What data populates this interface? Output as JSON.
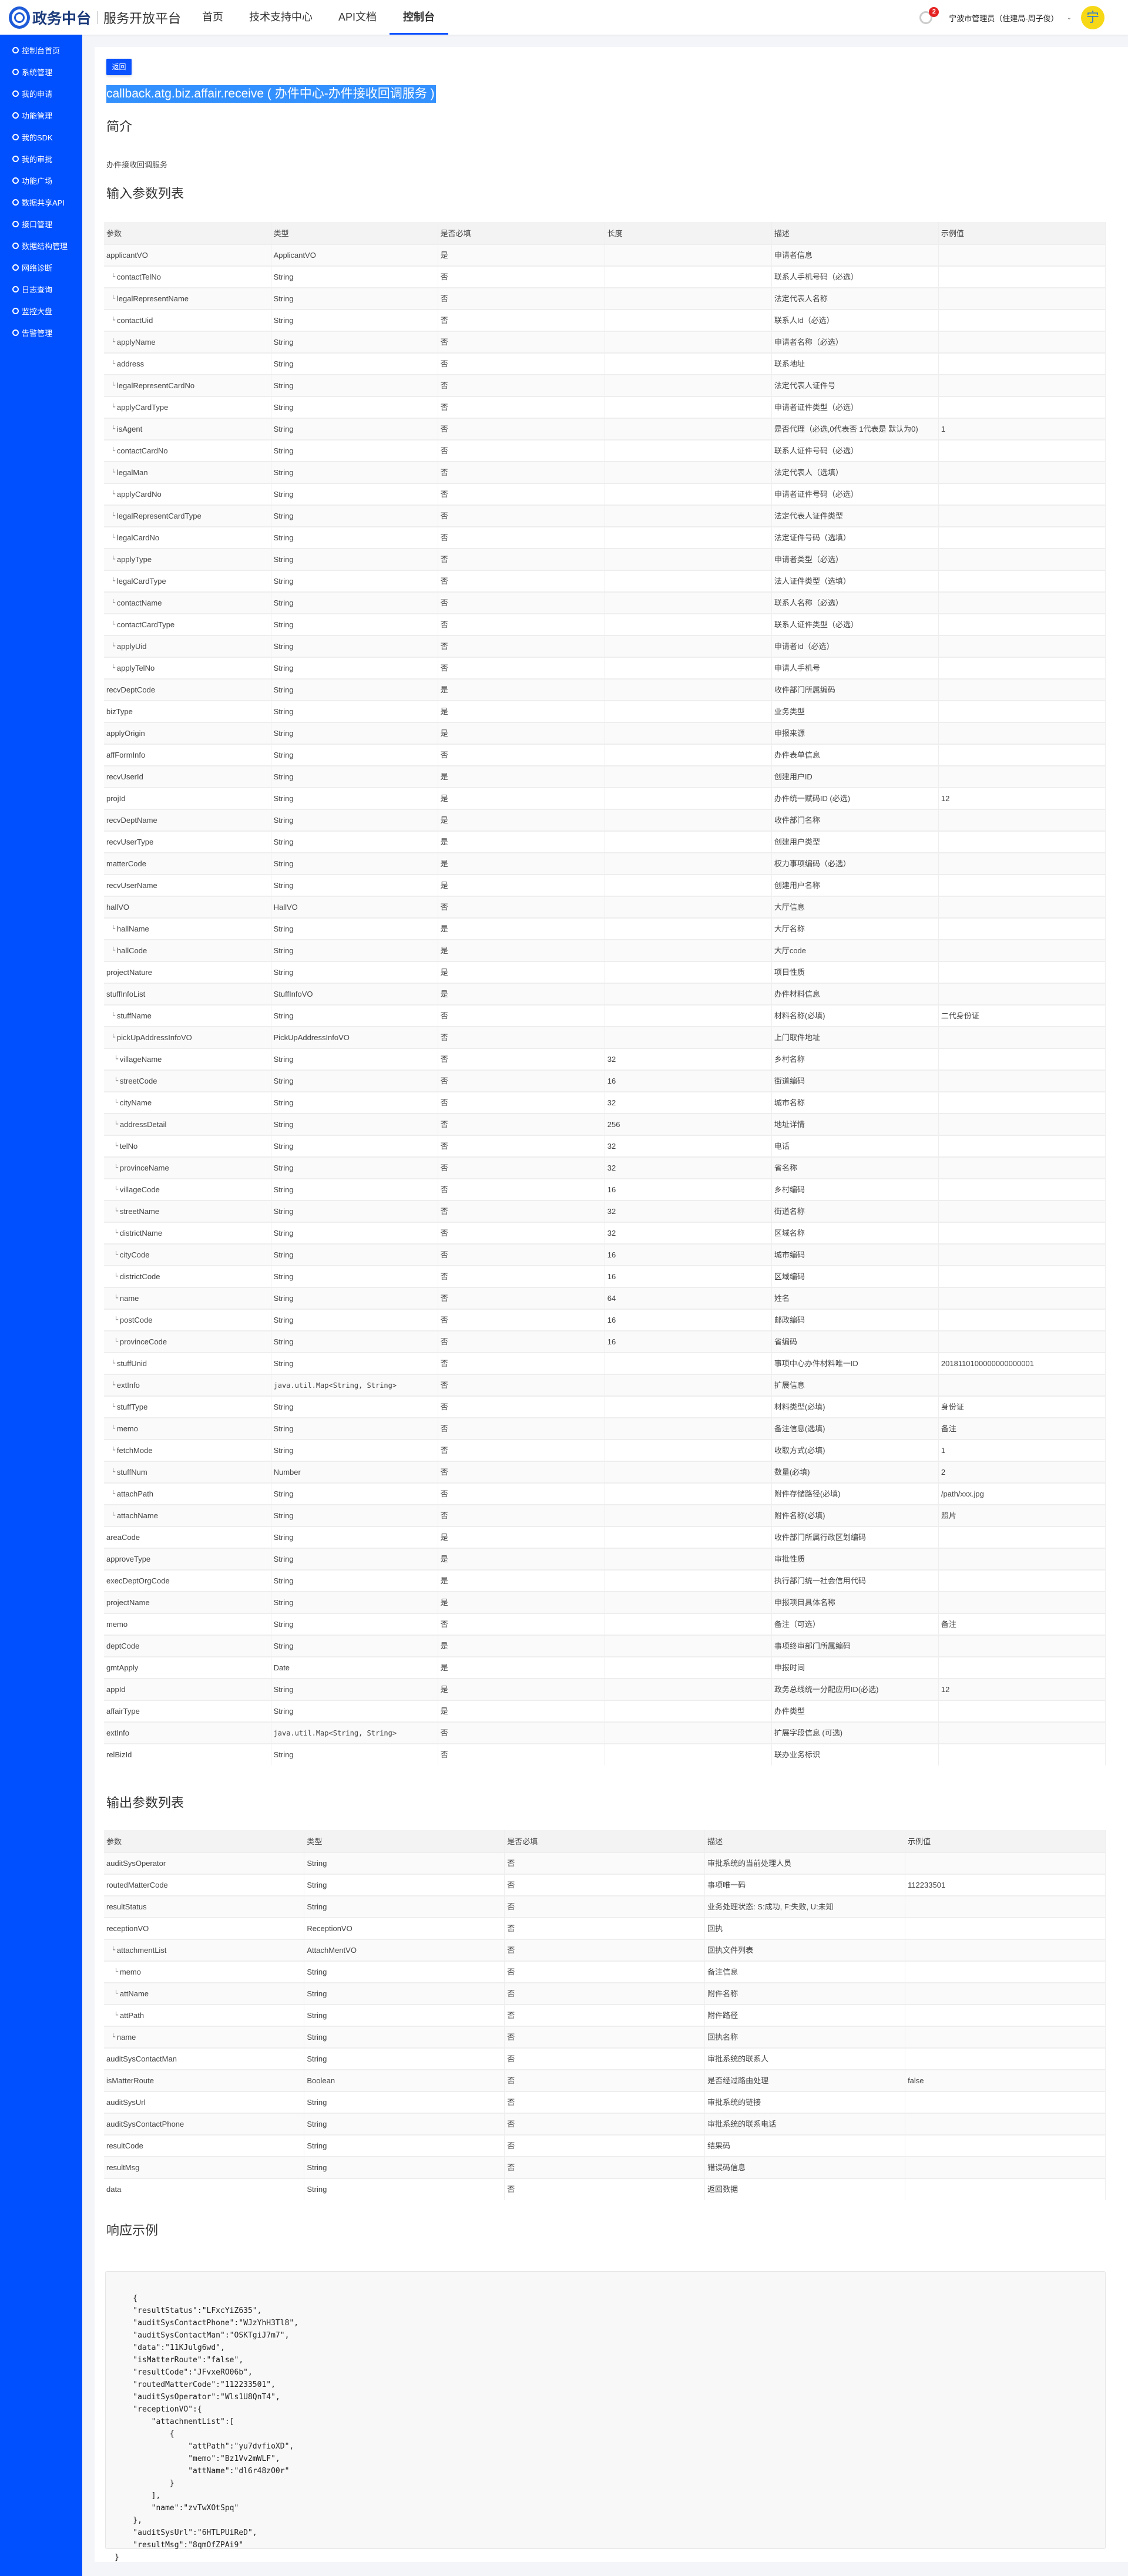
{
  "header": {
    "logo": "政务中台",
    "subtitle": "服务开放平台",
    "nav": [
      "首页",
      "技术支持中心",
      "API文档",
      "控制台"
    ],
    "active_nav": "控制台",
    "notification_count": "2",
    "user": "宁波市管理员（住建局-周子俊）",
    "avatar": "宁"
  },
  "sidebar": {
    "items": [
      {
        "label": "控制台首页",
        "icon": "smile-icon"
      },
      {
        "label": "系统管理",
        "icon": "gear-icon"
      },
      {
        "label": "我的申请",
        "icon": "pen-icon"
      },
      {
        "label": "功能管理",
        "icon": "copy-icon"
      },
      {
        "label": "我的SDK",
        "icon": "download-icon"
      },
      {
        "label": "我的审批",
        "icon": "wallet-icon"
      },
      {
        "label": "功能广场",
        "icon": "search-icon"
      },
      {
        "label": "数据共享API",
        "icon": "link-icon"
      },
      {
        "label": "接口管理",
        "icon": "user-icon"
      },
      {
        "label": "数据结构管理",
        "icon": "pie-chart-icon"
      },
      {
        "label": "网络诊断",
        "icon": "link-icon"
      },
      {
        "label": "日志查询",
        "icon": "clock-icon"
      },
      {
        "label": "监控大盘",
        "icon": "bar-chart-icon"
      },
      {
        "label": "告警管理",
        "icon": "smile-icon"
      }
    ]
  },
  "main": {
    "back_label": "返回",
    "api_title": "callback.atg.biz.affair.receive ( 办件中心-办件接收回调服务 )",
    "intro_heading": "简介",
    "intro_text": "办件接收回调服务",
    "input_heading": "输入参数列表",
    "input_columns": [
      "参数",
      "类型",
      "是否必填",
      "长度",
      "描述",
      "示例值"
    ],
    "input_rows": [
      [
        "applicantVO",
        "ApplicantVO",
        "是",
        "",
        "申请者信息",
        "",
        0
      ],
      [
        "contactTelNo",
        "String",
        "否",
        "",
        "联系人手机号码（必选）",
        "",
        1
      ],
      [
        "legalRepresentName",
        "String",
        "否",
        "",
        "法定代表人名称",
        "",
        1
      ],
      [
        "contactUid",
        "String",
        "否",
        "",
        "联系人Id（必选）",
        "",
        1
      ],
      [
        "applyName",
        "String",
        "否",
        "",
        "申请者名称（必选）",
        "",
        1
      ],
      [
        "address",
        "String",
        "否",
        "",
        "联系地址",
        "",
        1
      ],
      [
        "legalRepresentCardNo",
        "String",
        "否",
        "",
        "法定代表人证件号",
        "",
        1
      ],
      [
        "applyCardType",
        "String",
        "否",
        "",
        "申请者证件类型（必选）",
        "",
        1
      ],
      [
        "isAgent",
        "String",
        "否",
        "",
        "是否代理（必选,0代表否 1代表是 默认为0)",
        "1",
        1
      ],
      [
        "contactCardNo",
        "String",
        "否",
        "",
        "联系人证件号码（必选）",
        "",
        1
      ],
      [
        "legalMan",
        "String",
        "否",
        "",
        "法定代表人（选填）",
        "",
        1
      ],
      [
        "applyCardNo",
        "String",
        "否",
        "",
        "申请者证件号码（必选）",
        "",
        1
      ],
      [
        "legalRepresentCardType",
        "String",
        "否",
        "",
        "法定代表人证件类型",
        "",
        1
      ],
      [
        "legalCardNo",
        "String",
        "否",
        "",
        "法定证件号码（选填）",
        "",
        1
      ],
      [
        "applyType",
        "String",
        "否",
        "",
        "申请者类型（必选）",
        "",
        1
      ],
      [
        "legalCardType",
        "String",
        "否",
        "",
        "法人证件类型（选填）",
        "",
        1
      ],
      [
        "contactName",
        "String",
        "否",
        "",
        "联系人名称（必选）",
        "",
        1
      ],
      [
        "contactCardType",
        "String",
        "否",
        "",
        "联系人证件类型（必选）",
        "",
        1
      ],
      [
        "applyUid",
        "String",
        "否",
        "",
        "申请者Id（必选）",
        "",
        1
      ],
      [
        "applyTelNo",
        "String",
        "否",
        "",
        "申请人手机号",
        "",
        1
      ],
      [
        "recvDeptCode",
        "String",
        "是",
        "",
        "收件部门所属编码",
        "",
        0
      ],
      [
        "bizType",
        "String",
        "是",
        "",
        "业务类型",
        "",
        0
      ],
      [
        "applyOrigin",
        "String",
        "是",
        "",
        "申报来源",
        "",
        0
      ],
      [
        "affFormInfo",
        "String",
        "否",
        "",
        "办件表单信息",
        "",
        0
      ],
      [
        "recvUserId",
        "String",
        "是",
        "",
        "创建用户ID",
        "",
        0
      ],
      [
        "projId",
        "String",
        "是",
        "",
        "办件统一赋码ID (必选)",
        "12",
        0
      ],
      [
        "recvDeptName",
        "String",
        "是",
        "",
        "收件部门名称",
        "",
        0
      ],
      [
        "recvUserType",
        "String",
        "是",
        "",
        "创建用户类型",
        "",
        0
      ],
      [
        "matterCode",
        "String",
        "是",
        "",
        "权力事项编码（必选）",
        "",
        0
      ],
      [
        "recvUserName",
        "String",
        "是",
        "",
        "创建用户名称",
        "",
        0
      ],
      [
        "hallVO",
        "HallVO",
        "否",
        "",
        "大厅信息",
        "",
        0
      ],
      [
        "hallName",
        "String",
        "是",
        "",
        "大厅名称",
        "",
        1
      ],
      [
        "hallCode",
        "String",
        "是",
        "",
        "大厅code",
        "",
        1
      ],
      [
        "projectNature",
        "String",
        "是",
        "",
        "项目性质",
        "",
        0
      ],
      [
        "stuffInfoList",
        "StuffInfoVO",
        "是",
        "",
        "办件材料信息",
        "",
        0
      ],
      [
        "stuffName",
        "String",
        "否",
        "",
        "材料名称(必填)",
        "二代身份证",
        1
      ],
      [
        "pickUpAddressInfoVO",
        "PickUpAddressInfoVO",
        "否",
        "",
        "上门取件地址",
        "",
        1
      ],
      [
        "villageName",
        "String",
        "否",
        "32",
        "乡村名称",
        "",
        2
      ],
      [
        "streetCode",
        "String",
        "否",
        "16",
        "街道编码",
        "",
        2
      ],
      [
        "cityName",
        "String",
        "否",
        "32",
        "城市名称",
        "",
        2
      ],
      [
        "addressDetail",
        "String",
        "否",
        "256",
        "地址详情",
        "",
        2
      ],
      [
        "telNo",
        "String",
        "否",
        "32",
        "电话",
        "",
        2
      ],
      [
        "provinceName",
        "String",
        "否",
        "32",
        "省名称",
        "",
        2
      ],
      [
        "villageCode",
        "String",
        "否",
        "16",
        "乡村编码",
        "",
        2
      ],
      [
        "streetName",
        "String",
        "否",
        "32",
        "街道名称",
        "",
        2
      ],
      [
        "districtName",
        "String",
        "否",
        "32",
        "区域名称",
        "",
        2
      ],
      [
        "cityCode",
        "String",
        "否",
        "16",
        "城市编码",
        "",
        2
      ],
      [
        "districtCode",
        "String",
        "否",
        "16",
        "区域编码",
        "",
        2
      ],
      [
        "name",
        "String",
        "否",
        "64",
        "姓名",
        "",
        2
      ],
      [
        "postCode",
        "String",
        "否",
        "16",
        "邮政编码",
        "",
        2
      ],
      [
        "provinceCode",
        "String",
        "否",
        "16",
        "省编码",
        "",
        2
      ],
      [
        "stuffUnid",
        "String",
        "否",
        "",
        "事项中心办件材料唯一ID",
        "2018110100000000000001",
        1
      ],
      [
        "extInfo",
        "java.util.Map<String, String>",
        "否",
        "",
        "扩展信息",
        "",
        1
      ],
      [
        "stuffType",
        "String",
        "否",
        "",
        "材料类型(必填)",
        "身份证",
        1
      ],
      [
        "memo",
        "String",
        "否",
        "",
        "备注信息(选填)",
        "备注",
        1
      ],
      [
        "fetchMode",
        "String",
        "否",
        "",
        "收取方式(必填)",
        "1",
        1
      ],
      [
        "stuffNum",
        "Number",
        "否",
        "",
        "数量(必填)",
        "2",
        1
      ],
      [
        "attachPath",
        "String",
        "否",
        "",
        "附件存储路径(必填)",
        "/path/xxx.jpg",
        1
      ],
      [
        "attachName",
        "String",
        "否",
        "",
        "附件名称(必填)",
        "照片",
        1
      ],
      [
        "areaCode",
        "String",
        "是",
        "",
        "收件部门所属行政区划编码",
        "",
        0
      ],
      [
        "approveType",
        "String",
        "是",
        "",
        "审批性质",
        "",
        0
      ],
      [
        "execDeptOrgCode",
        "String",
        "是",
        "",
        "执行部门统一社会信用代码",
        "",
        0
      ],
      [
        "projectName",
        "String",
        "是",
        "",
        "申报项目具体名称",
        "",
        0
      ],
      [
        "memo",
        "String",
        "否",
        "",
        "备注（可选）",
        "备注",
        0
      ],
      [
        "deptCode",
        "String",
        "是",
        "",
        "事项终审部门所属编码",
        "",
        0
      ],
      [
        "gmtApply",
        "Date",
        "是",
        "",
        "申报时间",
        "",
        0
      ],
      [
        "appId",
        "String",
        "是",
        "",
        "政务总线统一分配应用ID(必选)",
        "12",
        0
      ],
      [
        "affairType",
        "String",
        "是",
        "",
        "办件类型",
        "",
        0
      ],
      [
        "extInfo",
        "java.util.Map<String, String>",
        "否",
        "",
        "扩展字段信息 (可选)",
        "",
        0
      ],
      [
        "relBizId",
        "String",
        "否",
        "",
        "联办业务标识",
        "",
        0
      ]
    ],
    "output_heading": "输出参数列表",
    "output_columns": [
      "参数",
      "类型",
      "是否必填",
      "描述",
      "示例值"
    ],
    "output_rows": [
      [
        "auditSysOperator",
        "String",
        "否",
        "审批系统的当前处理人员",
        "",
        0
      ],
      [
        "routedMatterCode",
        "String",
        "否",
        "事项唯一码",
        "112233501",
        0
      ],
      [
        "resultStatus",
        "String",
        "否",
        "业务处理状态: S:成功, F:失败, U:未知",
        "",
        0
      ],
      [
        "receptionVO",
        "ReceptionVO",
        "否",
        "回执",
        "",
        0
      ],
      [
        "attachmentList",
        "AttachMentVO",
        "否",
        "回执文件列表",
        "",
        1
      ],
      [
        "memo",
        "String",
        "否",
        "备注信息",
        "",
        2
      ],
      [
        "attName",
        "String",
        "否",
        "附件名称",
        "",
        2
      ],
      [
        "attPath",
        "String",
        "否",
        "附件路径",
        "",
        2
      ],
      [
        "name",
        "String",
        "否",
        "回执名称",
        "",
        1
      ],
      [
        "auditSysContactMan",
        "String",
        "否",
        "审批系统的联系人",
        "",
        0
      ],
      [
        "isMatterRoute",
        "Boolean",
        "否",
        "是否经过路由处理",
        "false",
        0
      ],
      [
        "auditSysUrl",
        "String",
        "否",
        "审批系统的链接",
        "",
        0
      ],
      [
        "auditSysContactPhone",
        "String",
        "否",
        "审批系统的联系电话",
        "",
        0
      ],
      [
        "resultCode",
        "String",
        "否",
        "结果码",
        "",
        0
      ],
      [
        "resultMsg",
        "String",
        "否",
        "错误码信息",
        "",
        0
      ],
      [
        "data",
        "String",
        "否",
        "返回数据",
        "",
        0
      ]
    ],
    "response_heading": "响应示例",
    "response_example": "    {\n    \"resultStatus\":\"LFxcYiZ635\",\n    \"auditSysContactPhone\":\"WJzYhH3Tl8\",\n    \"auditSysContactMan\":\"OSKTgiJ7m7\",\n    \"data\":\"11KJulg6wd\",\n    \"isMatterRoute\":\"false\",\n    \"resultCode\":\"JFvxeRO06b\",\n    \"routedMatterCode\":\"112233501\",\n    \"auditSysOperator\":\"Wls1U8QnT4\",\n    \"receptionVO\":{\n        \"attachmentList\":[\n            {\n                \"attPath\":\"yu7dvfioXD\",\n                \"memo\":\"Bz1Vv2mWLF\",\n                \"attName\":\"dl6r48zO0r\"\n            }\n        ],\n        \"name\":\"zvTwXOtSpq\"\n    },\n    \"auditSysUrl\":\"6HTLPUiReD\",\n    \"resultMsg\":\"8qmOfZPAi9\"\n}"
  }
}
